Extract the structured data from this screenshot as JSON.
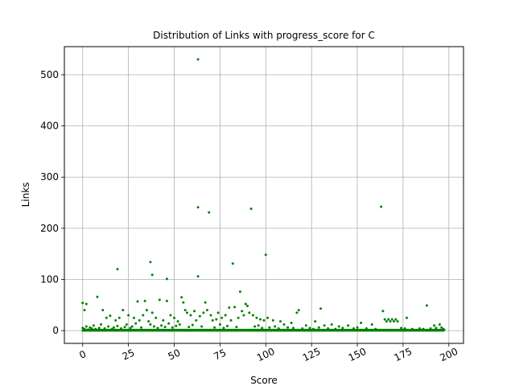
{
  "chart_data": {
    "type": "scatter",
    "title": "Distribution of Links with progress_score for C",
    "xlabel": "Score",
    "ylabel": "Links",
    "xlim": [
      -10,
      208
    ],
    "ylim": [
      -25,
      555
    ],
    "xticks": [
      0,
      25,
      50,
      75,
      100,
      125,
      150,
      175,
      200
    ],
    "yticks": [
      0,
      100,
      200,
      300,
      400,
      500
    ],
    "grid": true,
    "marker_color": "#008000",
    "points": [
      [
        63,
        530
      ],
      [
        63,
        241
      ],
      [
        69,
        231
      ],
      [
        92,
        238
      ],
      [
        163,
        242
      ],
      [
        19,
        120
      ],
      [
        37,
        134
      ],
      [
        38,
        109
      ],
      [
        46,
        101
      ],
      [
        82,
        131
      ],
      [
        100,
        148
      ],
      [
        63,
        106
      ],
      [
        0,
        54
      ],
      [
        2,
        52
      ],
      [
        1,
        40
      ],
      [
        8,
        66
      ],
      [
        11,
        40
      ],
      [
        13,
        25
      ],
      [
        15,
        29
      ],
      [
        18,
        20
      ],
      [
        20,
        25
      ],
      [
        22,
        40
      ],
      [
        25,
        30
      ],
      [
        28,
        25
      ],
      [
        30,
        57
      ],
      [
        31,
        20
      ],
      [
        33,
        30
      ],
      [
        34,
        58
      ],
      [
        35,
        40
      ],
      [
        36,
        18
      ],
      [
        38,
        35
      ],
      [
        40,
        25
      ],
      [
        42,
        60
      ],
      [
        44,
        20
      ],
      [
        46,
        58
      ],
      [
        48,
        30
      ],
      [
        50,
        25
      ],
      [
        52,
        18
      ],
      [
        54,
        65
      ],
      [
        55,
        55
      ],
      [
        56,
        40
      ],
      [
        57,
        35
      ],
      [
        59,
        30
      ],
      [
        61,
        38
      ],
      [
        62,
        20
      ],
      [
        64,
        28
      ],
      [
        66,
        35
      ],
      [
        67,
        55
      ],
      [
        68,
        40
      ],
      [
        70,
        30
      ],
      [
        71,
        20
      ],
      [
        73,
        22
      ],
      [
        74,
        35
      ],
      [
        76,
        25
      ],
      [
        78,
        30
      ],
      [
        80,
        45
      ],
      [
        81,
        20
      ],
      [
        83,
        46
      ],
      [
        85,
        25
      ],
      [
        86,
        76
      ],
      [
        87,
        38
      ],
      [
        88,
        30
      ],
      [
        89,
        52
      ],
      [
        90,
        48
      ],
      [
        91,
        35
      ],
      [
        93,
        30
      ],
      [
        95,
        25
      ],
      [
        97,
        22
      ],
      [
        99,
        20
      ],
      [
        101,
        25
      ],
      [
        104,
        20
      ],
      [
        108,
        18
      ],
      [
        110,
        12
      ],
      [
        114,
        15
      ],
      [
        117,
        35
      ],
      [
        118,
        40
      ],
      [
        122,
        10
      ],
      [
        127,
        18
      ],
      [
        130,
        43
      ],
      [
        132,
        10
      ],
      [
        136,
        12
      ],
      [
        140,
        8
      ],
      [
        145,
        10
      ],
      [
        152,
        15
      ],
      [
        158,
        12
      ],
      [
        164,
        38
      ],
      [
        165,
        22
      ],
      [
        166,
        18
      ],
      [
        167,
        22
      ],
      [
        168,
        18
      ],
      [
        169,
        22
      ],
      [
        170,
        18
      ],
      [
        171,
        22
      ],
      [
        172,
        18
      ],
      [
        177,
        25
      ],
      [
        188,
        49
      ],
      [
        192,
        10
      ],
      [
        195,
        12
      ],
      [
        196,
        6
      ],
      [
        0,
        5
      ],
      [
        1,
        3
      ],
      [
        2,
        8
      ],
      [
        3,
        2
      ],
      [
        4,
        6
      ],
      [
        5,
        4
      ],
      [
        6,
        10
      ],
      [
        7,
        3
      ],
      [
        9,
        5
      ],
      [
        10,
        12
      ],
      [
        12,
        4
      ],
      [
        14,
        8
      ],
      [
        16,
        3
      ],
      [
        17,
        6
      ],
      [
        19,
        9
      ],
      [
        21,
        4
      ],
      [
        23,
        7
      ],
      [
        24,
        12
      ],
      [
        26,
        5
      ],
      [
        27,
        8
      ],
      [
        29,
        14
      ],
      [
        32,
        6
      ],
      [
        37,
        12
      ],
      [
        39,
        8
      ],
      [
        41,
        5
      ],
      [
        43,
        10
      ],
      [
        45,
        7
      ],
      [
        47,
        14
      ],
      [
        49,
        6
      ],
      [
        51,
        9
      ],
      [
        53,
        12
      ],
      [
        58,
        7
      ],
      [
        60,
        11
      ],
      [
        65,
        8
      ],
      [
        72,
        6
      ],
      [
        75,
        12
      ],
      [
        77,
        5
      ],
      [
        79,
        9
      ],
      [
        84,
        7
      ],
      [
        94,
        8
      ],
      [
        96,
        10
      ],
      [
        98,
        5
      ],
      [
        102,
        6
      ],
      [
        105,
        8
      ],
      [
        107,
        4
      ],
      [
        112,
        6
      ],
      [
        115,
        5
      ],
      [
        120,
        4
      ],
      [
        124,
        5
      ],
      [
        126,
        3
      ],
      [
        129,
        6
      ],
      [
        134,
        4
      ],
      [
        138,
        3
      ],
      [
        142,
        5
      ],
      [
        148,
        4
      ],
      [
        150,
        6
      ],
      [
        155,
        4
      ],
      [
        160,
        3
      ],
      [
        174,
        5
      ],
      [
        176,
        4
      ],
      [
        180,
        3
      ],
      [
        184,
        4
      ],
      [
        186,
        3
      ],
      [
        190,
        4
      ],
      [
        193,
        5
      ],
      [
        197,
        3
      ]
    ]
  }
}
